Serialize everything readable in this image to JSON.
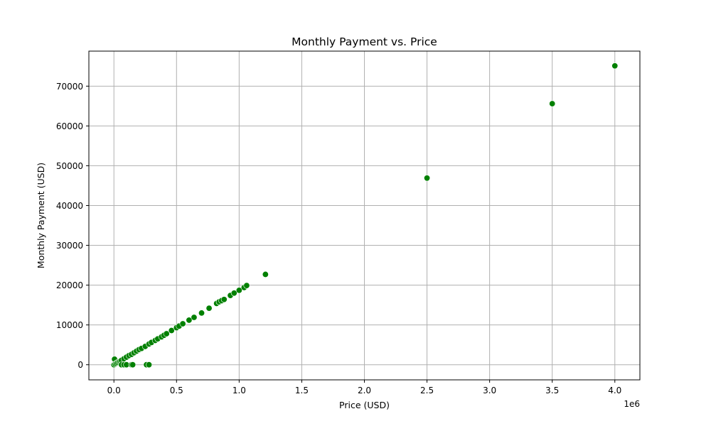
{
  "chart_data": {
    "type": "scatter",
    "title": "Monthly Payment vs. Price",
    "xlabel": "Price (USD)",
    "ylabel": "Monthly Payment (USD)",
    "x_offset_label": "1e6",
    "xlim": [
      -200000,
      4200000
    ],
    "ylim": [
      -3800,
      78800
    ],
    "x_ticks": [
      0,
      500000,
      1000000,
      1500000,
      2000000,
      2500000,
      3000000,
      3500000,
      4000000
    ],
    "x_tick_labels": [
      "0.0",
      "0.5",
      "1.0",
      "1.5",
      "2.0",
      "2.5",
      "3.0",
      "3.5",
      "4.0"
    ],
    "y_ticks": [
      0,
      10000,
      20000,
      30000,
      40000,
      50000,
      60000,
      70000
    ],
    "y_tick_labels": [
      "0",
      "10000",
      "20000",
      "30000",
      "40000",
      "50000",
      "60000",
      "70000"
    ],
    "grid": true,
    "marker_color": "#008000",
    "marker_edge_color": "#ffffff",
    "points": [
      {
        "x": 0,
        "y": 0
      },
      {
        "x": 5000,
        "y": 1400
      },
      {
        "x": 10000,
        "y": 200
      },
      {
        "x": 20000,
        "y": 400
      },
      {
        "x": 30000,
        "y": 600
      },
      {
        "x": 40000,
        "y": 800
      },
      {
        "x": 50000,
        "y": 900
      },
      {
        "x": 60000,
        "y": 1100
      },
      {
        "x": 80000,
        "y": 1500
      },
      {
        "x": 100000,
        "y": 1900
      },
      {
        "x": 120000,
        "y": 2300
      },
      {
        "x": 140000,
        "y": 2600
      },
      {
        "x": 160000,
        "y": 3000
      },
      {
        "x": 180000,
        "y": 3400
      },
      {
        "x": 200000,
        "y": 3800
      },
      {
        "x": 220000,
        "y": 4100
      },
      {
        "x": 250000,
        "y": 4600
      },
      {
        "x": 280000,
        "y": 5200
      },
      {
        "x": 300000,
        "y": 5600
      },
      {
        "x": 330000,
        "y": 6100
      },
      {
        "x": 350000,
        "y": 6500
      },
      {
        "x": 380000,
        "y": 7000
      },
      {
        "x": 400000,
        "y": 7400
      },
      {
        "x": 420000,
        "y": 7800
      },
      {
        "x": 460000,
        "y": 8600
      },
      {
        "x": 500000,
        "y": 9300
      },
      {
        "x": 520000,
        "y": 9700
      },
      {
        "x": 550000,
        "y": 10300
      },
      {
        "x": 600000,
        "y": 11200
      },
      {
        "x": 640000,
        "y": 11900
      },
      {
        "x": 700000,
        "y": 13000
      },
      {
        "x": 760000,
        "y": 14200
      },
      {
        "x": 820000,
        "y": 15400
      },
      {
        "x": 840000,
        "y": 15800
      },
      {
        "x": 860000,
        "y": 16100
      },
      {
        "x": 880000,
        "y": 16400
      },
      {
        "x": 930000,
        "y": 17400
      },
      {
        "x": 960000,
        "y": 18000
      },
      {
        "x": 1000000,
        "y": 18700
      },
      {
        "x": 1040000,
        "y": 19400
      },
      {
        "x": 1060000,
        "y": 19900
      },
      {
        "x": 1210000,
        "y": 22700
      },
      {
        "x": 2500000,
        "y": 46900
      },
      {
        "x": 3500000,
        "y": 65600
      },
      {
        "x": 4000000,
        "y": 75100
      },
      {
        "x": 60000,
        "y": 0
      },
      {
        "x": 80000,
        "y": 0
      },
      {
        "x": 100000,
        "y": 0
      },
      {
        "x": 140000,
        "y": 0
      },
      {
        "x": 150000,
        "y": 0
      },
      {
        "x": 260000,
        "y": 0
      },
      {
        "x": 280000,
        "y": 0
      }
    ]
  }
}
